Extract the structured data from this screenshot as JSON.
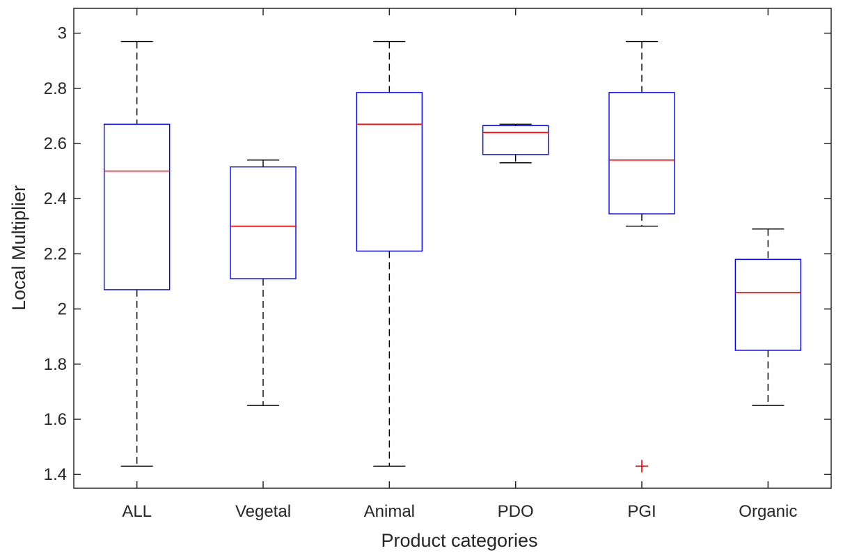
{
  "chart_data": {
    "type": "box",
    "title": "",
    "xlabel": "Product categories",
    "ylabel": "Local Multiplier",
    "ylim": [
      1.35,
      3.09
    ],
    "yticks": [
      1.4,
      1.6,
      1.8,
      2,
      2.2,
      2.4,
      2.6,
      2.8,
      3
    ],
    "ytick_labels": [
      "1.4",
      "1.6",
      "1.8",
      "2",
      "2.2",
      "2.4",
      "2.6",
      "2.8",
      "3"
    ],
    "grid": false,
    "colors": {
      "box": "#0000ff",
      "median": "#ff0000",
      "whisker": "#000000",
      "outlier": "#ff0000",
      "axis": "#262626"
    },
    "categories": [
      "ALL",
      "Vegetal",
      "Animal",
      "PDO",
      "PGI",
      "Organic"
    ],
    "boxes": [
      {
        "category": "ALL",
        "min": 1.43,
        "q1": 2.07,
        "median": 2.5,
        "q3": 2.67,
        "max": 2.97,
        "outliers": []
      },
      {
        "category": "Vegetal",
        "min": 1.65,
        "q1": 2.11,
        "median": 2.3,
        "q3": 2.515,
        "max": 2.54,
        "outliers": []
      },
      {
        "category": "Animal",
        "min": 1.43,
        "q1": 2.21,
        "median": 2.67,
        "q3": 2.785,
        "max": 2.97,
        "outliers": []
      },
      {
        "category": "PDO",
        "min": 2.53,
        "q1": 2.56,
        "median": 2.64,
        "q3": 2.665,
        "max": 2.67,
        "outliers": []
      },
      {
        "category": "PGI",
        "min": 2.3,
        "q1": 2.345,
        "median": 2.54,
        "q3": 2.785,
        "max": 2.97,
        "outliers": [
          1.43
        ]
      },
      {
        "category": "Organic",
        "min": 1.65,
        "q1": 1.85,
        "median": 2.06,
        "q3": 2.18,
        "max": 2.29,
        "outliers": []
      }
    ]
  }
}
